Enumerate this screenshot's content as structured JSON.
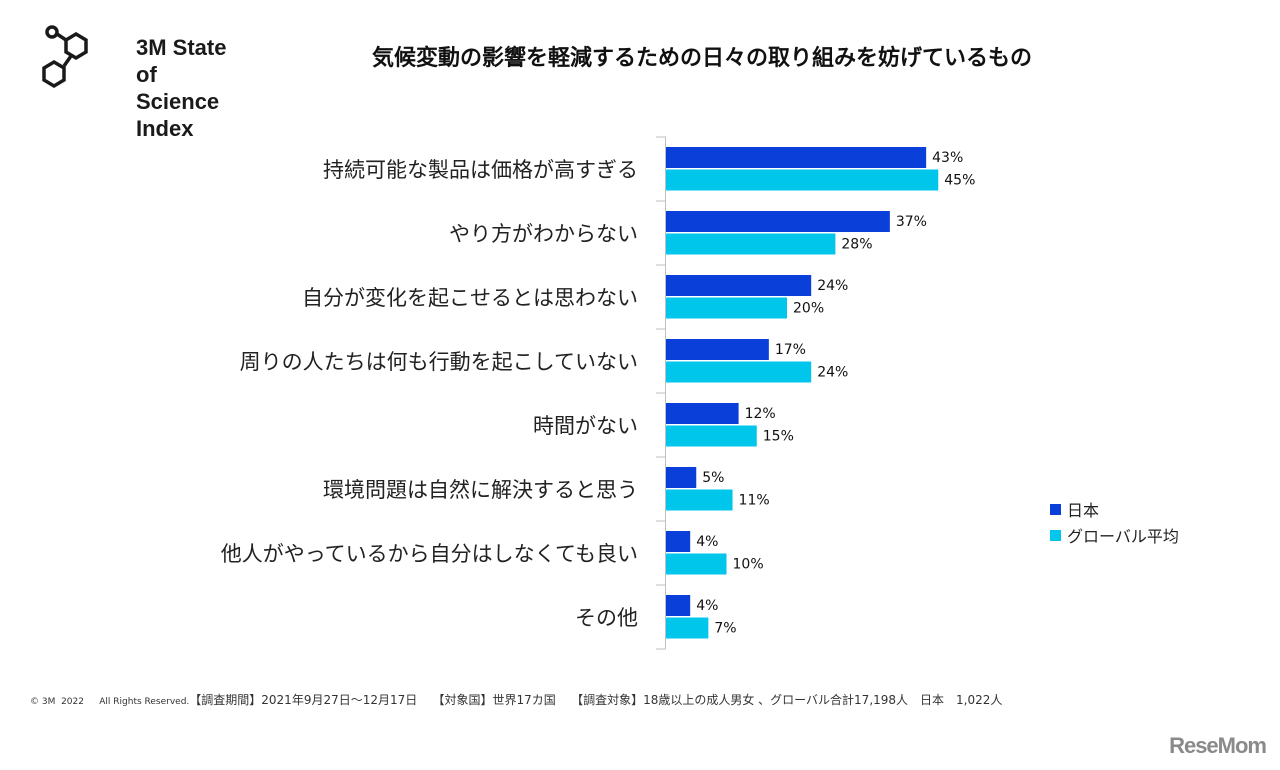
{
  "logo": {
    "lines": [
      "3M State",
      "of Science",
      "Index"
    ]
  },
  "chart_data": {
    "type": "bar",
    "orientation": "horizontal",
    "title": "気候変動の影響を軽減するための日々の取り組みを妨げているもの",
    "categories": [
      "持続可能な製品は価格が高すぎる",
      "やり方がわからない",
      "自分が変化を起こせるとは思わない",
      "周りの人たちは何も行動を起こしていない",
      "時間がない",
      "環境問題は自然に解決すると思う",
      "他人がやっているから自分はしなくても良い",
      "その他"
    ],
    "series": [
      {
        "name": "日本",
        "color": "#0a3fd9",
        "values": [
          43,
          37,
          24,
          17,
          12,
          5,
          4,
          4
        ],
        "labels": [
          "43%",
          "37%",
          "24%",
          "17%",
          "12%",
          "5%",
          "4%",
          "4%"
        ]
      },
      {
        "name": "グローバル平均",
        "color": "#00c6ec",
        "values": [
          45,
          28,
          20,
          24,
          15,
          11,
          10,
          7
        ],
        "labels": [
          "45%",
          "28%",
          "20%",
          "24%",
          "15%",
          "11%",
          "10%",
          "7%"
        ]
      }
    ],
    "xlim": [
      0,
      100
    ],
    "grid": false,
    "legend_position": "right"
  },
  "footer": {
    "copyright": "© 3M  2022",
    "rights": "All Rights Reserved.",
    "period": "【調査期間】2021年9月27日～12月17日",
    "countries": "【対象国】世界17カ国",
    "target": "【調査対象】18歳以上の成人男女 、グローバル合計17,198人　日本　1,022人"
  },
  "watermark": "ReseMom"
}
